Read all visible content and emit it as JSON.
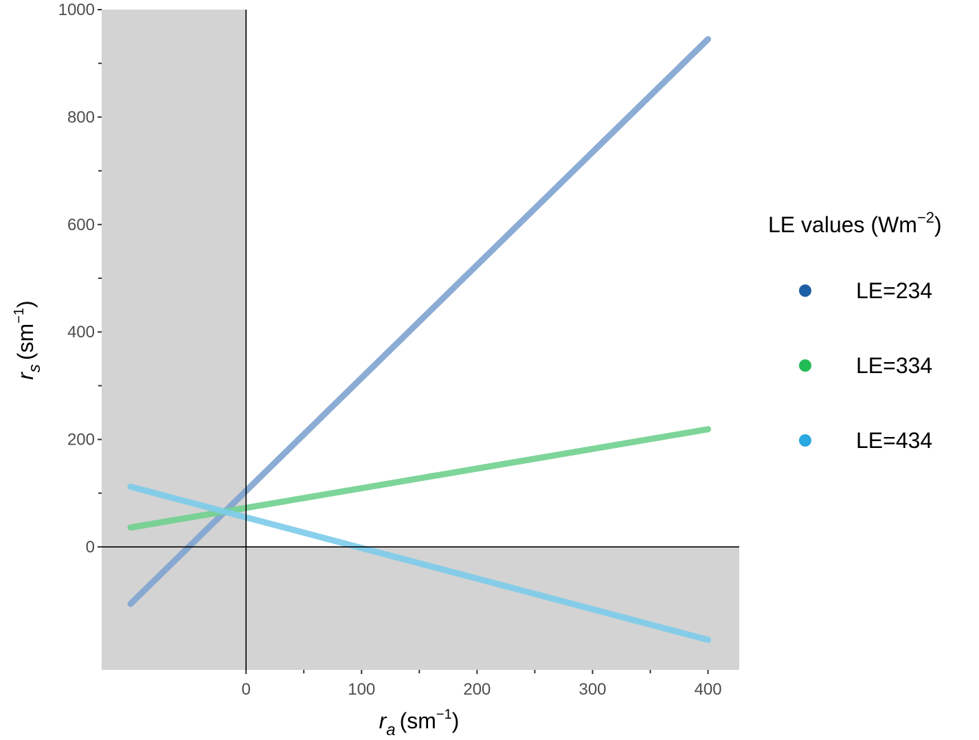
{
  "chart_data": {
    "type": "line",
    "title": "",
    "xlabel": "r_a (sm^-1)",
    "ylabel": "r_s (sm^-1)",
    "xlabel_parts": {
      "var": "r",
      "sub": "a",
      "unit": "(sm",
      "sup": "−1",
      "close": ")"
    },
    "ylabel_parts": {
      "var": "r",
      "sub": "s",
      "unit": "(sm",
      "sup": "−1",
      "close": ")"
    },
    "xlim": [
      -125,
      427
    ],
    "ylim": [
      -229,
      1000
    ],
    "x_ticks": [
      0,
      100,
      200,
      300,
      400
    ],
    "x_tick_labels": [
      "0",
      "100",
      "200",
      "300",
      "400"
    ],
    "x_minor_ticks": [
      50,
      150,
      250,
      350
    ],
    "y_ticks": [
      0,
      200,
      400,
      600,
      800,
      1000
    ],
    "y_tick_labels": [
      "0",
      "200",
      "400",
      "600",
      "800",
      "1000"
    ],
    "y_minor_ticks": [
      100,
      300,
      500,
      700,
      900
    ],
    "grid": false,
    "shaded_regions": "x < 0 and y < 0 shaded grey (#d3d3d3)",
    "reference_lines": {
      "x": 0,
      "y": 0
    },
    "legend": {
      "title": "LE values (Wm",
      "title_sup": "−2",
      "title_close": ")",
      "position": "right"
    },
    "series": [
      {
        "name": "LE=234",
        "color": "#1f5fa6",
        "line_color": "#7ea3cf",
        "x": [
          -100,
          400
        ],
        "y": [
          -106,
          945
        ]
      },
      {
        "name": "LE=334",
        "color": "#22bb55",
        "line_color": "#6fd08e",
        "x": [
          -100,
          400
        ],
        "y": [
          36,
          219
        ]
      },
      {
        "name": "LE=434",
        "color": "#2aa8e0",
        "line_color": "#7ccbea",
        "x": [
          -100,
          400
        ],
        "y": [
          112,
          -173
        ]
      }
    ]
  }
}
